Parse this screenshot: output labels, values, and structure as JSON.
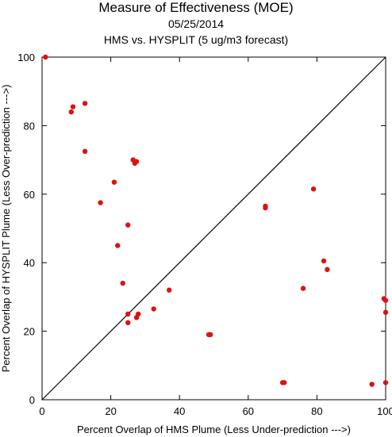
{
  "chart_data": {
    "type": "scatter",
    "title": "Measure of Effectiveness (MOE)",
    "subtitle": "05/25/2014",
    "subtitle2": "HMS vs. HYSPLIT  (5 ug/m3 forecast)",
    "xlabel": "Percent Overlap of HMS Plume (Less Under-prediction --->)",
    "ylabel": "Percent Overlap of HYSPLIT Plume (Less Over-prediction --->)",
    "xlim": [
      0,
      100
    ],
    "ylim": [
      0,
      100
    ],
    "xticks": [
      0,
      20,
      40,
      60,
      80,
      100
    ],
    "yticks": [
      0,
      20,
      40,
      60,
      80,
      100
    ],
    "point_color": "#e01010",
    "points": [
      {
        "x": 1,
        "y": 100
      },
      {
        "x": 9,
        "y": 85.5
      },
      {
        "x": 12.5,
        "y": 86.5
      },
      {
        "x": 8.5,
        "y": 84
      },
      {
        "x": 12.5,
        "y": 72.5
      },
      {
        "x": 26.5,
        "y": 70
      },
      {
        "x": 27.5,
        "y": 69.5
      },
      {
        "x": 27,
        "y": 69
      },
      {
        "x": 21,
        "y": 63.5
      },
      {
        "x": 17,
        "y": 57.5
      },
      {
        "x": 25,
        "y": 51
      },
      {
        "x": 22,
        "y": 45
      },
      {
        "x": 23.5,
        "y": 34
      },
      {
        "x": 37,
        "y": 32
      },
      {
        "x": 32.5,
        "y": 26.5
      },
      {
        "x": 25,
        "y": 25
      },
      {
        "x": 28,
        "y": 25
      },
      {
        "x": 27.5,
        "y": 24
      },
      {
        "x": 25,
        "y": 22.5
      },
      {
        "x": 48.5,
        "y": 19
      },
      {
        "x": 49,
        "y": 19
      },
      {
        "x": 65,
        "y": 56.5
      },
      {
        "x": 65,
        "y": 56
      },
      {
        "x": 79,
        "y": 61.5
      },
      {
        "x": 82,
        "y": 40.5
      },
      {
        "x": 83,
        "y": 38
      },
      {
        "x": 76,
        "y": 32.5
      },
      {
        "x": 70,
        "y": 5
      },
      {
        "x": 70.5,
        "y": 5
      },
      {
        "x": 96,
        "y": 4.5
      },
      {
        "x": 100,
        "y": 5
      },
      {
        "x": 99.5,
        "y": 29.5
      },
      {
        "x": 100,
        "y": 29
      },
      {
        "x": 100,
        "y": 25.5
      }
    ],
    "reference_line": {
      "from": [
        0,
        0
      ],
      "to": [
        100,
        100
      ]
    },
    "grid": false
  }
}
